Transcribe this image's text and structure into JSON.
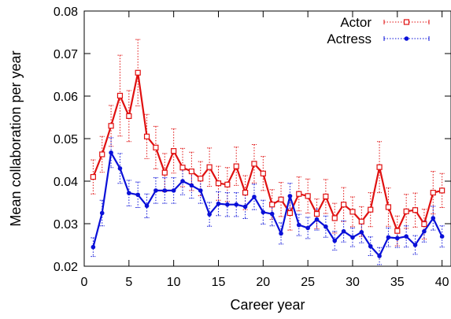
{
  "chart_data": {
    "type": "line",
    "xlabel": "Career year",
    "ylabel": "Mean collaboration per year",
    "xlim": [
      0,
      41
    ],
    "ylim": [
      0.02,
      0.08
    ],
    "xticks": [
      "0",
      "5",
      "10",
      "15",
      "20",
      "25",
      "30",
      "35",
      "40"
    ],
    "yticks": [
      "0.02",
      "0.03",
      "0.04",
      "0.05",
      "0.06",
      "0.07",
      "0.08"
    ],
    "legend_position": "top-right",
    "x": [
      1,
      2,
      3,
      4,
      5,
      6,
      7,
      8,
      9,
      10,
      11,
      12,
      13,
      14,
      15,
      16,
      17,
      18,
      19,
      20,
      21,
      22,
      23,
      24,
      25,
      26,
      27,
      28,
      29,
      30,
      31,
      32,
      33,
      34,
      35,
      36,
      37,
      38,
      39,
      40
    ],
    "series": [
      {
        "name": "Actor",
        "color": "#e01010",
        "marker": "open-square",
        "values": [
          0.041,
          0.0463,
          0.053,
          0.0601,
          0.0553,
          0.0655,
          0.0505,
          0.0479,
          0.042,
          0.0471,
          0.0432,
          0.0423,
          0.0406,
          0.0433,
          0.0395,
          0.0392,
          0.0435,
          0.0373,
          0.0441,
          0.0418,
          0.0345,
          0.0357,
          0.0325,
          0.037,
          0.0365,
          0.0323,
          0.0364,
          0.0313,
          0.0345,
          0.0328,
          0.0305,
          0.0333,
          0.0433,
          0.0339,
          0.0283,
          0.0329,
          0.0332,
          0.0299,
          0.0373,
          0.0378
        ],
        "error": [
          0.004,
          0.0042,
          0.0048,
          0.0095,
          0.006,
          0.0078,
          0.0052,
          0.005,
          0.0045,
          0.0052,
          0.0045,
          0.0045,
          0.004,
          0.0045,
          0.004,
          0.004,
          0.0045,
          0.004,
          0.0045,
          0.004,
          0.0035,
          0.004,
          0.004,
          0.004,
          0.004,
          0.0035,
          0.004,
          0.0035,
          0.004,
          0.0035,
          0.0035,
          0.004,
          0.006,
          0.0045,
          0.0035,
          0.004,
          0.004,
          0.0035,
          0.005,
          0.004
        ]
      },
      {
        "name": "Actress",
        "color": "#0a10d8",
        "marker": "filled-circle",
        "values": [
          0.0245,
          0.0325,
          0.0467,
          0.043,
          0.0372,
          0.0368,
          0.0342,
          0.0378,
          0.0378,
          0.0378,
          0.04,
          0.039,
          0.0378,
          0.0322,
          0.0347,
          0.0345,
          0.0345,
          0.034,
          0.0363,
          0.0327,
          0.0323,
          0.0277,
          0.0365,
          0.0297,
          0.029,
          0.031,
          0.0293,
          0.026,
          0.0282,
          0.0268,
          0.028,
          0.0247,
          0.0224,
          0.0268,
          0.0266,
          0.027,
          0.025,
          0.0282,
          0.0313,
          0.027
        ],
        "error": [
          0.0022,
          0.003,
          0.0035,
          0.0035,
          0.003,
          0.003,
          0.0028,
          0.003,
          0.003,
          0.003,
          0.0032,
          0.003,
          0.003,
          0.0028,
          0.0028,
          0.0028,
          0.0028,
          0.0028,
          0.003,
          0.0028,
          0.0028,
          0.0025,
          0.003,
          0.0025,
          0.0025,
          0.0025,
          0.0025,
          0.0022,
          0.0025,
          0.0022,
          0.0025,
          0.0022,
          0.002,
          0.0022,
          0.0022,
          0.0025,
          0.0022,
          0.0025,
          0.0028,
          0.0025
        ]
      }
    ]
  }
}
